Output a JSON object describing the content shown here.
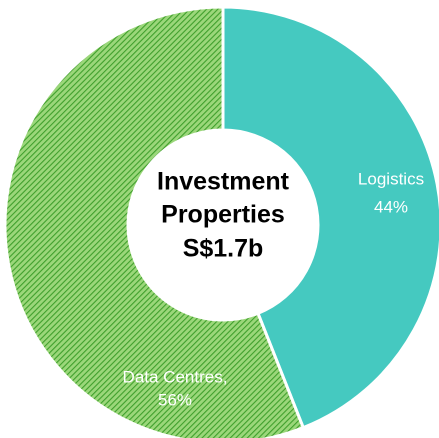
{
  "chart_data": {
    "type": "donut",
    "center_text": [
      "Investment",
      "Properties",
      "S$1.7b"
    ],
    "categories": [
      "Logistics",
      "Data Centres,"
    ],
    "values": [
      44,
      56
    ],
    "value_labels": [
      "44%",
      "56%"
    ],
    "colors": [
      "#45c9c0",
      "#5dbb3f"
    ]
  }
}
